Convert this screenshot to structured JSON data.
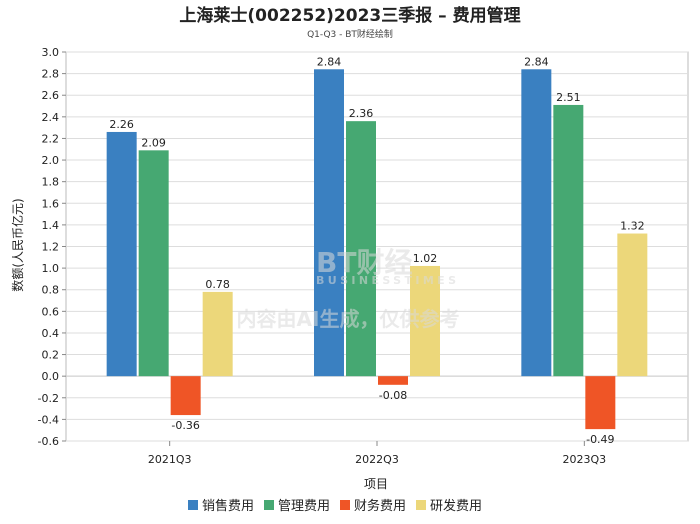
{
  "chart_data": {
    "type": "bar",
    "title": "上海莱士(002252)2023三季报 – 费用管理",
    "subtitle": "Q1-Q3 - BT财经绘制",
    "xlabel": "项目",
    "ylabel": "数额(人民币亿元)",
    "ylim": [
      -0.6,
      3.0
    ],
    "ytick_step": 0.2,
    "grid": true,
    "legend_position": "bottom",
    "categories": [
      "2021Q3",
      "2022Q3",
      "2023Q3"
    ],
    "series": [
      {
        "name": "销售费用",
        "color": "#3a80c1",
        "values": [
          2.26,
          2.84,
          2.84
        ]
      },
      {
        "name": "管理费用",
        "color": "#46a872",
        "values": [
          2.09,
          2.36,
          2.51
        ]
      },
      {
        "name": "财务费用",
        "color": "#ef5526",
        "values": [
          -0.36,
          -0.08,
          -0.49
        ]
      },
      {
        "name": "研发费用",
        "color": "#ecd77a",
        "values": [
          0.78,
          1.02,
          1.32
        ]
      }
    ]
  },
  "watermark": {
    "logo": "BT财经",
    "logo_sub": "BUSINESSTIMES",
    "notice": "内容由AI生成，仅供参考"
  }
}
